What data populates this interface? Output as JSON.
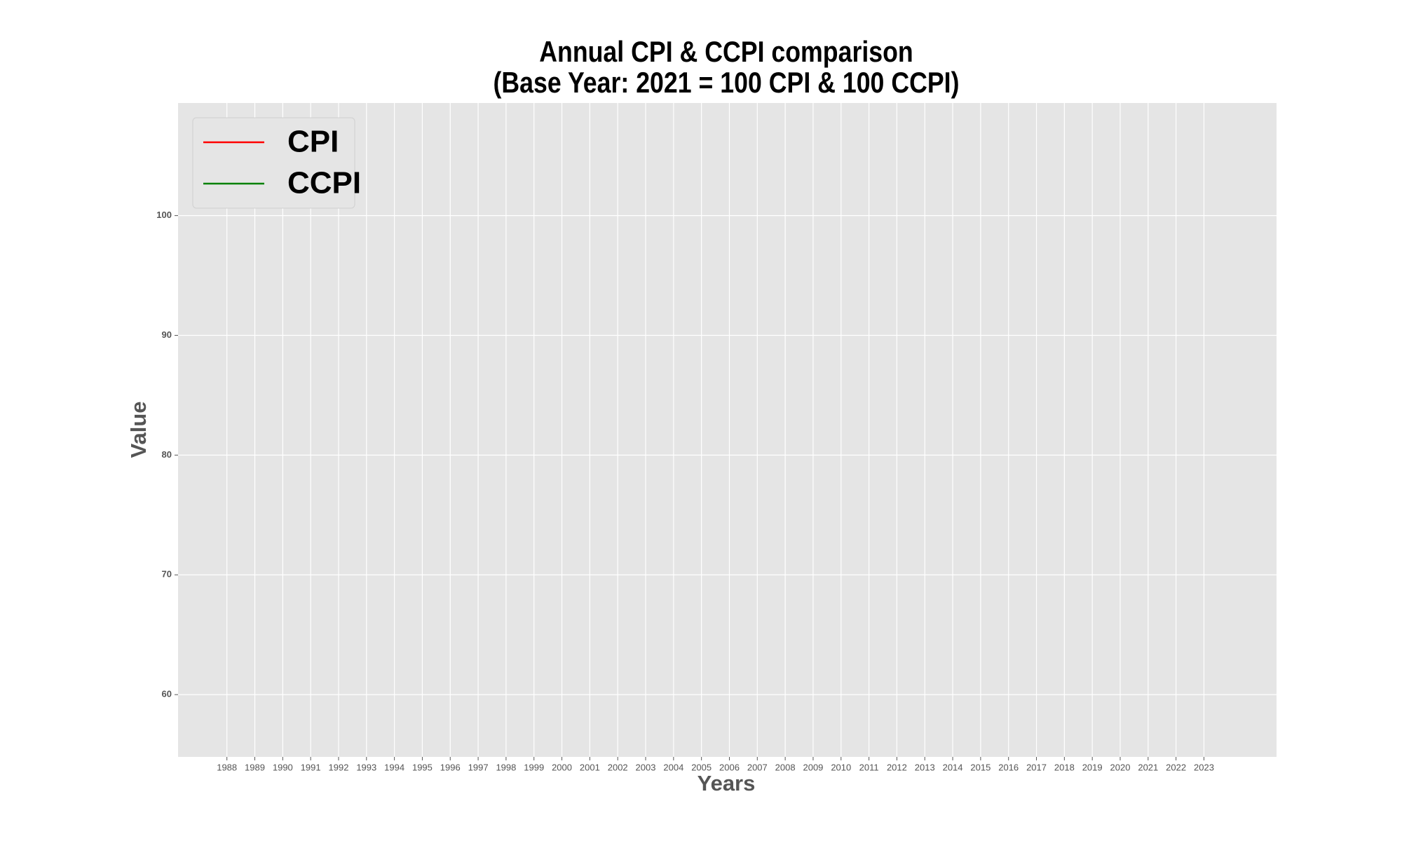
{
  "chart_data": {
    "type": "line",
    "title": [
      "Annual CPI & CCPI comparison",
      "(Base Year: 2021 = 100 CPI & 100 CCPI)"
    ],
    "xlabel": "Years",
    "ylabel": "Value",
    "x": [
      1988,
      1989,
      1990,
      1991,
      1992,
      1993,
      1994,
      1995,
      1996,
      1997,
      1998,
      1999,
      2000,
      2001,
      2002,
      2003,
      2004,
      2005,
      2006,
      2007,
      2008,
      2009,
      2010,
      2011,
      2012,
      2013,
      2014,
      2015,
      2016,
      2017,
      2018,
      2019,
      2020,
      2021,
      2022,
      2023
    ],
    "series": [
      {
        "name": "CPI",
        "color": "#ff0000",
        "values": [
          null,
          null,
          null,
          null,
          null,
          null,
          null,
          null,
          null,
          null,
          null,
          null,
          null,
          null,
          null,
          null,
          null,
          null,
          null,
          null,
          null,
          null,
          null,
          null,
          null,
          null,
          null,
          null,
          null,
          null,
          null,
          null,
          null,
          null,
          null,
          null
        ]
      },
      {
        "name": "CCPI",
        "color": "#008000",
        "values": [
          null,
          null,
          null,
          null,
          null,
          null,
          null,
          null,
          null,
          null,
          null,
          null,
          null,
          null,
          null,
          null,
          null,
          null,
          null,
          null,
          null,
          null,
          null,
          null,
          null,
          null,
          null,
          null,
          null,
          null,
          null,
          null,
          null,
          null,
          null,
          null
        ]
      }
    ],
    "xlim": [
      1986.25,
      2025.6
    ],
    "xticks": [
      1988,
      1989,
      1990,
      1991,
      1992,
      1993,
      1994,
      1995,
      1996,
      1997,
      1998,
      1999,
      2000,
      2001,
      2002,
      2003,
      2004,
      2005,
      2006,
      2007,
      2008,
      2009,
      2010,
      2011,
      2012,
      2013,
      2014,
      2015,
      2016,
      2017,
      2018,
      2019,
      2020,
      2021,
      2022,
      2023
    ],
    "ylim": [
      54.8,
      109.4
    ],
    "yticks": [
      60,
      70,
      80,
      90,
      100
    ],
    "grid": true,
    "legend": "upper left"
  }
}
